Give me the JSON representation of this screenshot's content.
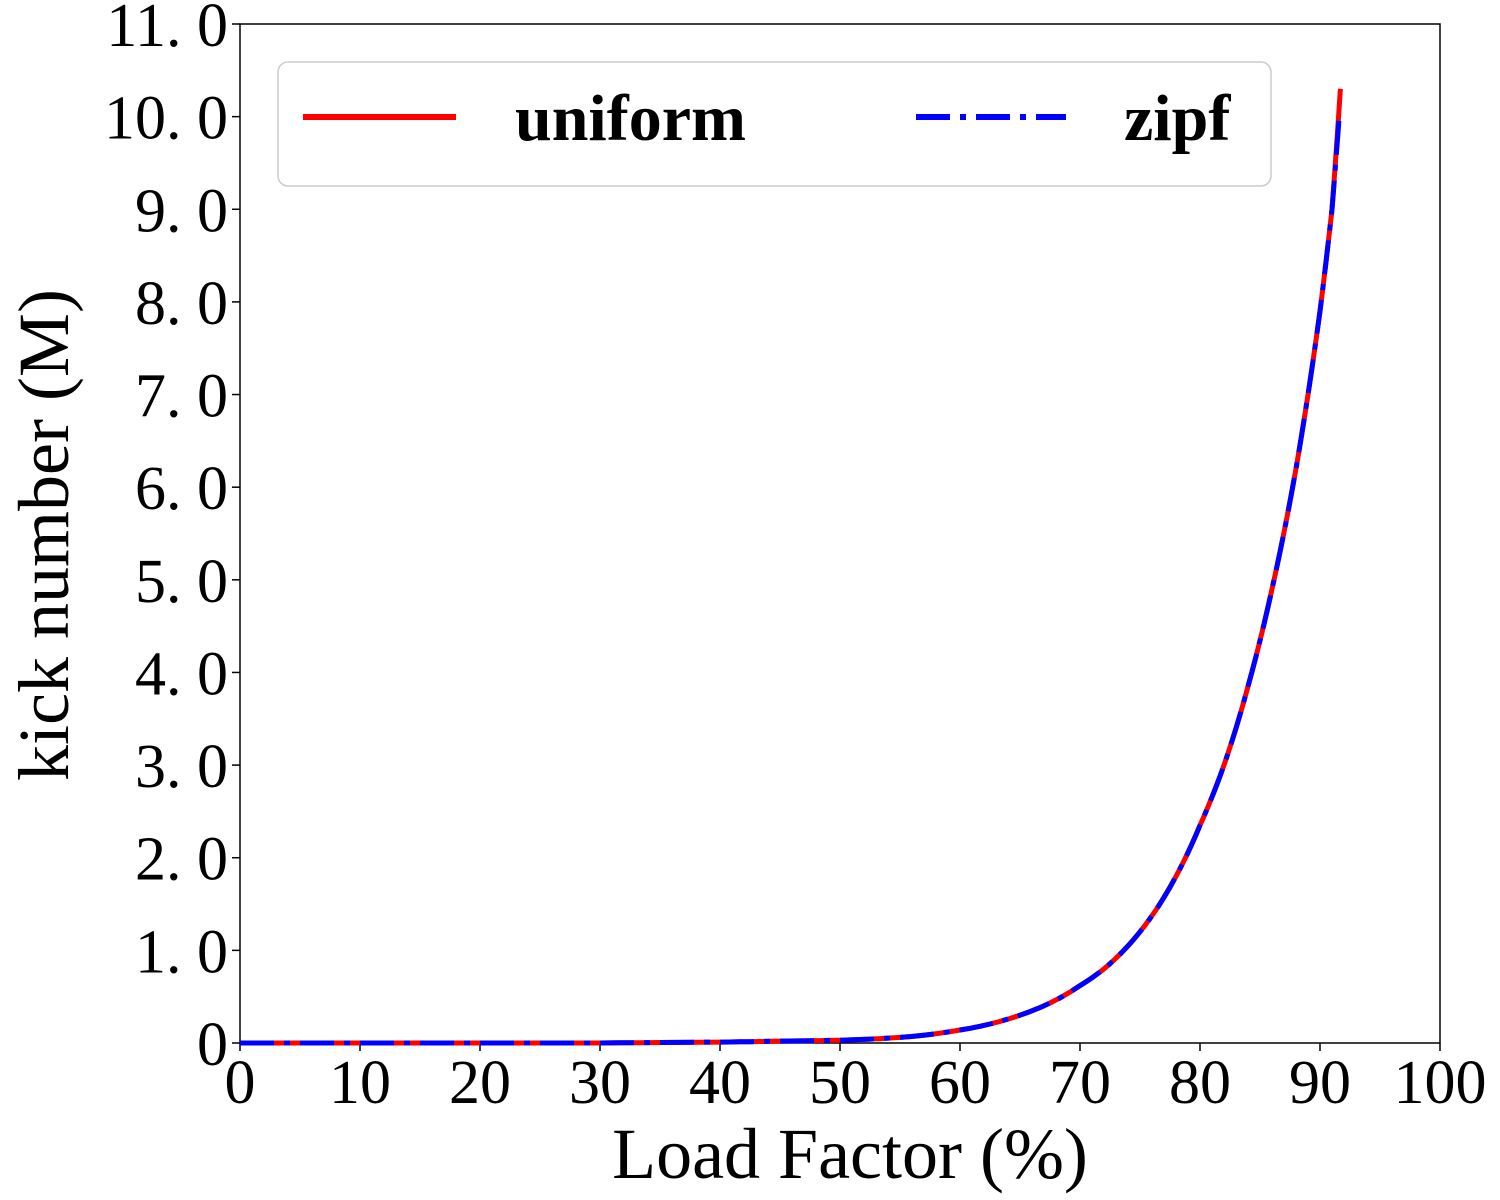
{
  "chart_data": {
    "type": "line",
    "title": "",
    "xlabel": "Load Factor  (%)",
    "ylabel": "kick number  (M)",
    "xlim": [
      0,
      100
    ],
    "ylim": [
      0,
      11
    ],
    "x_ticks": [
      0,
      10,
      20,
      30,
      40,
      50,
      60,
      70,
      80,
      90,
      100
    ],
    "x_tick_labels": [
      "0",
      "10",
      "20",
      "30",
      "40",
      "50",
      "60",
      "70",
      "80",
      "90",
      "100"
    ],
    "y_ticks": [
      0,
      1,
      2,
      3,
      4,
      5,
      6,
      7,
      8,
      9,
      10,
      11
    ],
    "y_tick_labels": [
      "0",
      "1. 0",
      "2. 0",
      "3. 0",
      "4. 0",
      "5. 0",
      "6. 0",
      "7. 0",
      "8. 0",
      "9. 0",
      "10. 0",
      "11. 0"
    ],
    "grid": false,
    "legend_position": "top",
    "series": [
      {
        "name": "uniform",
        "color": "#ff0000",
        "style": "solid",
        "x": [
          0,
          10,
          20,
          30,
          40,
          45,
          50,
          55,
          60,
          65,
          70,
          72,
          75,
          78,
          80,
          82,
          84,
          86,
          88,
          90,
          91,
          91.7
        ],
        "y": [
          0,
          0,
          0,
          0,
          0.01,
          0.02,
          0.03,
          0.06,
          0.14,
          0.3,
          0.62,
          0.8,
          1.2,
          1.8,
          2.35,
          3.0,
          3.85,
          4.9,
          6.2,
          7.9,
          9.0,
          10.3
        ]
      },
      {
        "name": "zipf",
        "color": "#0000ff",
        "style": "dashdot",
        "x": [
          0,
          10,
          20,
          30,
          40,
          45,
          50,
          55,
          60,
          65,
          70,
          72,
          75,
          78,
          80,
          82,
          84,
          86,
          88,
          90,
          91,
          91.6
        ],
        "y": [
          0,
          0,
          0,
          0,
          0.01,
          0.02,
          0.03,
          0.06,
          0.14,
          0.3,
          0.62,
          0.8,
          1.2,
          1.8,
          2.35,
          3.0,
          3.85,
          4.9,
          6.2,
          7.9,
          9.0,
          10.0
        ]
      }
    ]
  }
}
